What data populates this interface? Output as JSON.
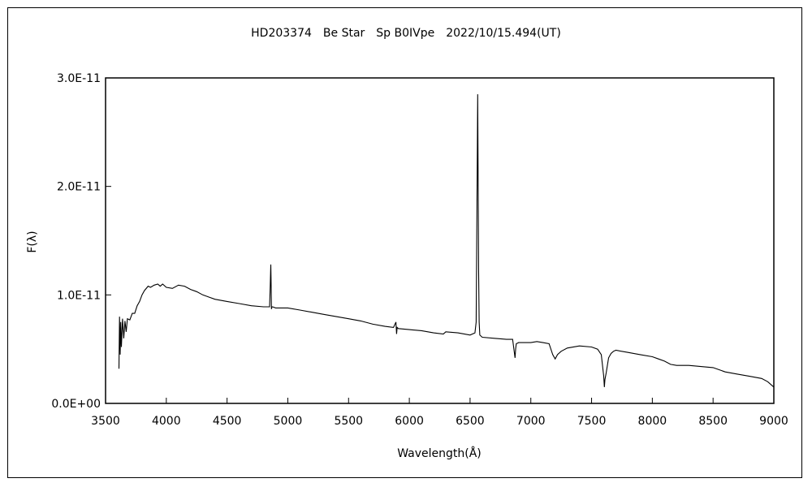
{
  "chart_data": {
    "type": "line",
    "title": "HD203374　Be Star　Sp B0IVpe　2022/10/15.494(UT)",
    "xlabel": "Wavelength(Å)",
    "ylabel": "F(λ)",
    "xlim": [
      3500,
      9000
    ],
    "ylim": [
      0,
      3e-11
    ],
    "x_ticks": [
      3500,
      4000,
      4500,
      5000,
      5500,
      6000,
      6500,
      7000,
      7500,
      8000,
      8500,
      9000
    ],
    "x_tick_labels": [
      "3500",
      "4000",
      "4500",
      "5000",
      "5500",
      "6000",
      "6500",
      "7000",
      "7500",
      "8000",
      "8500",
      "9000"
    ],
    "y_ticks": [
      0,
      1e-11,
      2e-11,
      3e-11
    ],
    "y_tick_labels": [
      "0.0E+00",
      "1.0E-11",
      "2.0E-11",
      "3.0E-11"
    ],
    "grid": false,
    "line_color": "#000000",
    "series": [
      {
        "x": [
          3610,
          3615,
          3620,
          3625,
          3630,
          3640,
          3650,
          3660,
          3670,
          3680,
          3700,
          3720,
          3740,
          3760,
          3780,
          3800,
          3820,
          3850,
          3870,
          3900,
          3930,
          3950,
          3970,
          4000,
          4050,
          4100,
          4150,
          4200,
          4250,
          4300,
          4350,
          4400,
          4500,
          4600,
          4700,
          4800,
          4850,
          4855,
          4860,
          4862,
          4865,
          4870,
          4875,
          4900,
          5000,
          5100,
          5200,
          5300,
          5400,
          5500,
          5600,
          5700,
          5800,
          5870,
          5890,
          5895,
          5900,
          5910,
          6000,
          6100,
          6200,
          6280,
          6300,
          6400,
          6500,
          6540,
          6550,
          6555,
          6560,
          6563,
          6566,
          6570,
          6575,
          6580,
          6590,
          6600,
          6700,
          6800,
          6850,
          6870,
          6875,
          6880,
          6900,
          6950,
          7000,
          7050,
          7100,
          7150,
          7180,
          7200,
          7220,
          7250,
          7300,
          7400,
          7500,
          7550,
          7580,
          7600,
          7605,
          7610,
          7620,
          7640,
          7660,
          7680,
          7700,
          7800,
          7900,
          8000,
          8050,
          8100,
          8150,
          8200,
          8300,
          8400,
          8500,
          8600,
          8700,
          8800,
          8900,
          8950,
          9000
        ],
        "y": [
          3.2e-12,
          8e-12,
          4.5e-12,
          7.5e-12,
          5.2e-12,
          7.8e-12,
          6e-12,
          7.6e-12,
          6.6e-12,
          7.8e-12,
          7.7e-12,
          8.3e-12,
          8.3e-12,
          9e-12,
          9.4e-12,
          1e-11,
          1.04e-11,
          1.08e-11,
          1.07e-11,
          1.09e-11,
          1.1e-11,
          1.08e-11,
          1.1e-11,
          1.07e-11,
          1.06e-11,
          1.09e-11,
          1.08e-11,
          1.05e-11,
          1.03e-11,
          1e-11,
          9.8e-12,
          9.6e-12,
          9.4e-12,
          9.2e-12,
          9e-12,
          8.9e-12,
          8.9e-12,
          1.08e-11,
          1.28e-11,
          1.15e-11,
          8.7e-12,
          8.9e-12,
          8.9e-12,
          8.8e-12,
          8.8e-12,
          8.6e-12,
          8.4e-12,
          8.2e-12,
          8e-12,
          7.8e-12,
          7.6e-12,
          7.3e-12,
          7.1e-12,
          7e-12,
          7.5e-12,
          6.4e-12,
          7e-12,
          6.9e-12,
          6.8e-12,
          6.7e-12,
          6.5e-12,
          6.4e-12,
          6.6e-12,
          6.5e-12,
          6.3e-12,
          6.5e-12,
          7.5e-12,
          1.5e-11,
          2.38e-11,
          2.85e-11,
          2.1e-11,
          1.25e-11,
          7.5e-12,
          6.3e-12,
          6.2e-12,
          6.1e-12,
          6e-12,
          5.9e-12,
          5.9e-12,
          4.2e-12,
          5e-12,
          5.5e-12,
          5.6e-12,
          5.6e-12,
          5.6e-12,
          5.7e-12,
          5.6e-12,
          5.5e-12,
          4.5e-12,
          4.1e-12,
          4.5e-12,
          4.8e-12,
          5.1e-12,
          5.3e-12,
          5.2e-12,
          5e-12,
          4.5e-12,
          2.5e-12,
          1.5e-12,
          2.2e-12,
          2.8e-12,
          4.2e-12,
          4.6e-12,
          4.8e-12,
          4.9e-12,
          4.7e-12,
          4.5e-12,
          4.3e-12,
          4.1e-12,
          3.9e-12,
          3.6e-12,
          3.5e-12,
          3.5e-12,
          3.4e-12,
          3.3e-12,
          2.9e-12,
          2.7e-12,
          2.5e-12,
          2.3e-12,
          2e-12,
          1.5e-12
        ]
      }
    ]
  }
}
